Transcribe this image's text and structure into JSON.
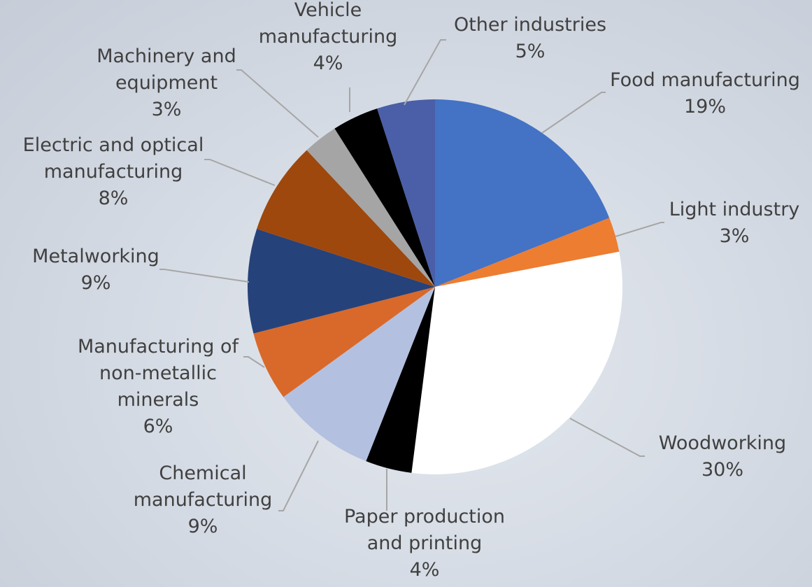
{
  "chart_data": {
    "type": "pie",
    "title": "",
    "start_angle_deg": 0,
    "direction": "clockwise",
    "slices": [
      {
        "label": "Food manufacturing",
        "value": 19,
        "display": "19%",
        "color": "#4472C4"
      },
      {
        "label": "Light industry",
        "value": 3,
        "display": "3%",
        "color": "#ED7D31"
      },
      {
        "label": "Woodworking",
        "value": 30,
        "display": "30%",
        "color": "#FFFFFF"
      },
      {
        "label": "Paper production and printing",
        "value": 4,
        "display": "4%",
        "color": "#000000"
      },
      {
        "label": "Chemical manufacturing",
        "value": 9,
        "display": "9%",
        "color": "#B4C0E0"
      },
      {
        "label": "Manufacturing of non-metallic minerals",
        "value": 6,
        "display": "6%",
        "color": "#D9692A"
      },
      {
        "label": "Metalworking",
        "value": 9,
        "display": "9%",
        "color": "#26427A"
      },
      {
        "label": "Electric and optical manufacturing",
        "value": 8,
        "display": "8%",
        "color": "#9E480E"
      },
      {
        "label": "Machinery and equipment",
        "value": 3,
        "display": "3%",
        "color": "#A5A5A5"
      },
      {
        "label": "Vehicle manufacturing",
        "value": 4,
        "display": "4%",
        "color": "#000000"
      },
      {
        "label": "Other industries",
        "value": 5,
        "display": "5%",
        "color": "#4A5FA8"
      }
    ],
    "legend": "none",
    "data_labels": "outside with leader lines"
  }
}
